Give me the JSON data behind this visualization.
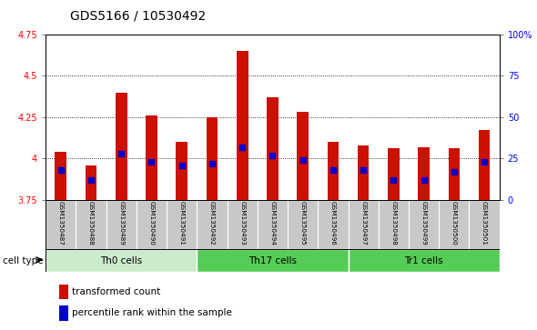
{
  "title": "GDS5166 / 10530492",
  "samples": [
    "GSM1350487",
    "GSM1350488",
    "GSM1350489",
    "GSM1350490",
    "GSM1350491",
    "GSM1350492",
    "GSM1350493",
    "GSM1350494",
    "GSM1350495",
    "GSM1350496",
    "GSM1350497",
    "GSM1350498",
    "GSM1350499",
    "GSM1350500",
    "GSM1350501"
  ],
  "bar_values": [
    4.04,
    3.96,
    4.4,
    4.26,
    4.1,
    4.25,
    4.65,
    4.37,
    4.28,
    4.1,
    4.08,
    4.06,
    4.07,
    4.06,
    4.17
  ],
  "dot_values": [
    3.93,
    3.87,
    4.03,
    3.98,
    3.96,
    3.97,
    4.07,
    4.02,
    3.99,
    3.93,
    3.93,
    3.87,
    3.87,
    3.92,
    3.98
  ],
  "ymin": 3.75,
  "ymax": 4.75,
  "yticks": [
    3.75,
    4.0,
    4.25,
    4.5,
    4.75
  ],
  "ytick_labels": [
    "3.75",
    "4",
    "4.25",
    "4.5",
    "4.75"
  ],
  "right_yticks": [
    0,
    25,
    50,
    75,
    100
  ],
  "right_ytick_labels": [
    "0",
    "25",
    "50",
    "75",
    "100%"
  ],
  "bar_color": "#CC1100",
  "dot_color": "#0000CC",
  "cell_groups": [
    {
      "label": "Th0 cells",
      "start": 0,
      "end": 5,
      "color": "#CCEACC"
    },
    {
      "label": "Th17 cells",
      "start": 5,
      "end": 10,
      "color": "#66CC66"
    },
    {
      "label": "Tr1 cells",
      "start": 10,
      "end": 15,
      "color": "#66CC66"
    }
  ],
  "bar_width": 0.38,
  "title_fontsize": 10,
  "tick_fontsize": 7,
  "legend_fontsize": 7.5
}
